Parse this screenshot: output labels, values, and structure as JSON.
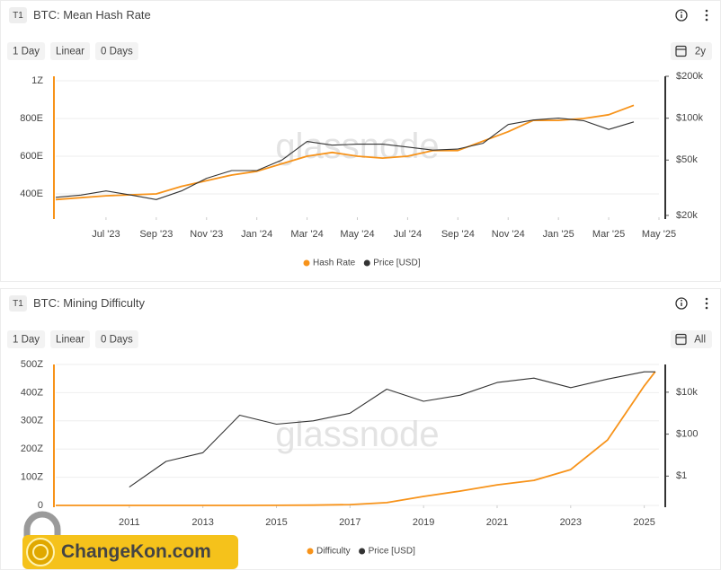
{
  "chart_data": [
    {
      "type": "line",
      "header_tag": "T1",
      "title": "BTC: Mean Hash Rate",
      "controls": [
        "1 Day",
        "Linear",
        "0 Days"
      ],
      "range": "2y",
      "watermark": "glassnode",
      "x": [
        "2023-05",
        "2023-06",
        "2023-07",
        "2023-08",
        "2023-09",
        "2023-10",
        "2023-11",
        "2023-12",
        "2024-01",
        "2024-02",
        "2024-03",
        "2024-04",
        "2024-05",
        "2024-06",
        "2024-07",
        "2024-08",
        "2024-09",
        "2024-10",
        "2024-11",
        "2024-12",
        "2025-01",
        "2025-02",
        "2025-03",
        "2025-04"
      ],
      "xlim": [
        "2023-05",
        "2025-05"
      ],
      "xticks": [
        {
          "value": "2023-07",
          "label": "Jul '23"
        },
        {
          "value": "2023-09",
          "label": "Sep '23"
        },
        {
          "value": "2023-11",
          "label": "Nov '23"
        },
        {
          "value": "2024-01",
          "label": "Jan '24"
        },
        {
          "value": "2024-03",
          "label": "Mar '24"
        },
        {
          "value": "2024-05",
          "label": "May '24"
        },
        {
          "value": "2024-07",
          "label": "Jul '24"
        },
        {
          "value": "2024-09",
          "label": "Sep '24"
        },
        {
          "value": "2024-11",
          "label": "Nov '24"
        },
        {
          "value": "2025-01",
          "label": "Jan '25"
        },
        {
          "value": "2025-03",
          "label": "Mar '25"
        },
        {
          "value": "2025-05",
          "label": "May '25"
        }
      ],
      "ylim": [
        276,
        1024
      ],
      "yticks": [
        {
          "value": 400,
          "label": "400E"
        },
        {
          "value": 600,
          "label": "600E"
        },
        {
          "value": 800,
          "label": "800E"
        },
        {
          "value": 1000,
          "label": "1Z"
        }
      ],
      "y2lim": [
        19400,
        200000
      ],
      "y2log": true,
      "y2ticks": [
        {
          "value": 20000,
          "label": "$20k"
        },
        {
          "value": 50000,
          "label": "$50k"
        },
        {
          "value": 100000,
          "label": "$100k"
        },
        {
          "value": 200000,
          "label": "$200k"
        }
      ],
      "grid": true,
      "series": [
        {
          "name": "Hash Rate",
          "color": "#f7931a",
          "values": [
            370,
            380,
            390,
            395,
            400,
            440,
            470,
            500,
            520,
            560,
            600,
            620,
            600,
            590,
            600,
            630,
            630,
            680,
            730,
            790,
            790,
            800,
            820,
            870
          ]
        },
        {
          "name": "Price [USD]",
          "color": "#333333",
          "axis": "y2",
          "values": [
            27000,
            28000,
            30000,
            28000,
            26000,
            30000,
            37000,
            42000,
            42000,
            50000,
            68000,
            64000,
            65000,
            65000,
            62000,
            59000,
            60000,
            66000,
            90000,
            97000,
            100000,
            96000,
            83000,
            94000
          ]
        }
      ]
    },
    {
      "type": "line",
      "header_tag": "T1",
      "title": "BTC: Mining Difficulty",
      "controls": [
        "1 Day",
        "Linear",
        "0 Days"
      ],
      "range": "All",
      "watermark": "glassnode",
      "x": [
        2009,
        2010,
        2011,
        2012,
        2013,
        2014,
        2015,
        2016,
        2017,
        2018,
        2019,
        2020,
        2021,
        2022,
        2023,
        2024,
        2025,
        2025.3
      ],
      "xlim": [
        2009,
        2025.4
      ],
      "xticks": [
        2011,
        2013,
        2015,
        2017,
        2019,
        2021,
        2023,
        2025
      ],
      "ylim": [
        0,
        500
      ],
      "yticks": [
        0,
        {
          "value": 100,
          "label": "100Z"
        },
        {
          "value": 200,
          "label": "200Z"
        },
        {
          "value": 300,
          "label": "300Z"
        },
        {
          "value": 400,
          "label": "400Z"
        },
        {
          "value": 500,
          "label": "500Z"
        }
      ],
      "y2lim": [
        0.04,
        210000
      ],
      "y2log": true,
      "y2ticks": [
        {
          "value": 1,
          "label": "$1"
        },
        {
          "value": 100,
          "label": "$100"
        },
        {
          "value": 10000,
          "label": "$10k"
        }
      ],
      "grid": true,
      "series": [
        {
          "name": "Difficulty",
          "color": "#f7931a",
          "values": [
            0,
            0,
            0,
            0,
            0,
            0.1,
            0.3,
            0.8,
            3,
            10,
            32,
            51,
            73,
            89,
            127,
            232,
            424,
            475
          ]
        },
        {
          "name": "Price [USD]",
          "color": "#333333",
          "axis": "y2",
          "values": [
            null,
            null,
            0.3,
            5,
            13,
            800,
            300,
            430,
            1000,
            14000,
            3700,
            7200,
            29000,
            47000,
            16500,
            42000,
            94000,
            94000
          ]
        }
      ]
    }
  ],
  "logo": "ChangeKon.com"
}
